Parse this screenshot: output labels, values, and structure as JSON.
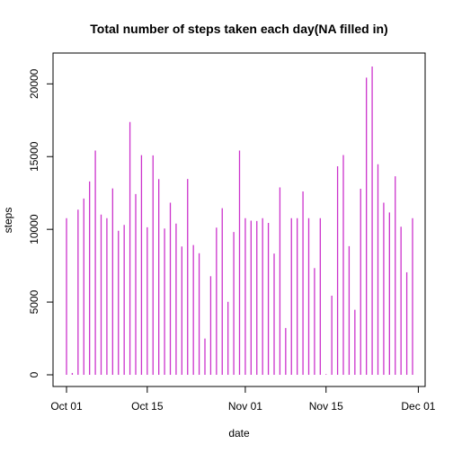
{
  "chart_data": {
    "type": "bar",
    "title": "Total number of steps taken each day(NA filled in)",
    "xlabel": "date",
    "ylabel": "steps",
    "color": "#CC33CC",
    "ylim": [
      0,
      21194
    ],
    "xlim": [
      "2012-10-01",
      "2012-11-30"
    ],
    "grid": false,
    "legend": "none",
    "x_ticks": [
      "Oct 01",
      "Oct 15",
      "Nov 01",
      "Nov 15",
      "Dec 01"
    ],
    "y_ticks": [
      "0",
      "5000",
      "10000",
      "15000",
      "20000"
    ],
    "x": [
      "2012-10-01",
      "2012-10-02",
      "2012-10-03",
      "2012-10-04",
      "2012-10-05",
      "2012-10-06",
      "2012-10-07",
      "2012-10-08",
      "2012-10-09",
      "2012-10-10",
      "2012-10-11",
      "2012-10-12",
      "2012-10-13",
      "2012-10-14",
      "2012-10-15",
      "2012-10-16",
      "2012-10-17",
      "2012-10-18",
      "2012-10-19",
      "2012-10-20",
      "2012-10-21",
      "2012-10-22",
      "2012-10-23",
      "2012-10-24",
      "2012-10-25",
      "2012-10-26",
      "2012-10-27",
      "2012-10-28",
      "2012-10-29",
      "2012-10-30",
      "2012-10-31",
      "2012-11-01",
      "2012-11-02",
      "2012-11-03",
      "2012-11-04",
      "2012-11-05",
      "2012-11-06",
      "2012-11-07",
      "2012-11-08",
      "2012-11-09",
      "2012-11-10",
      "2012-11-11",
      "2012-11-12",
      "2012-11-13",
      "2012-11-14",
      "2012-11-15",
      "2012-11-16",
      "2012-11-17",
      "2012-11-18",
      "2012-11-19",
      "2012-11-20",
      "2012-11-21",
      "2012-11-22",
      "2012-11-23",
      "2012-11-24",
      "2012-11-25",
      "2012-11-26",
      "2012-11-27",
      "2012-11-28",
      "2012-11-29",
      "2012-11-30"
    ],
    "values": [
      10766,
      126,
      11352,
      12116,
      13294,
      15420,
      11015,
      10766,
      12811,
      9900,
      10304,
      17382,
      12426,
      15098,
      10139,
      15084,
      13452,
      10056,
      11829,
      10395,
      8821,
      13460,
      8918,
      8355,
      2492,
      6778,
      10119,
      11458,
      5018,
      9819,
      15414,
      10766,
      10600,
      10571,
      10766,
      10439,
      8334,
      12883,
      3219,
      10766,
      10766,
      12608,
      10765,
      7336,
      10766,
      41,
      5441,
      14339,
      15110,
      8841,
      4472,
      12787,
      20427,
      21194,
      14478,
      11834,
      11162,
      13646,
      10183,
      7047,
      10766
    ]
  }
}
